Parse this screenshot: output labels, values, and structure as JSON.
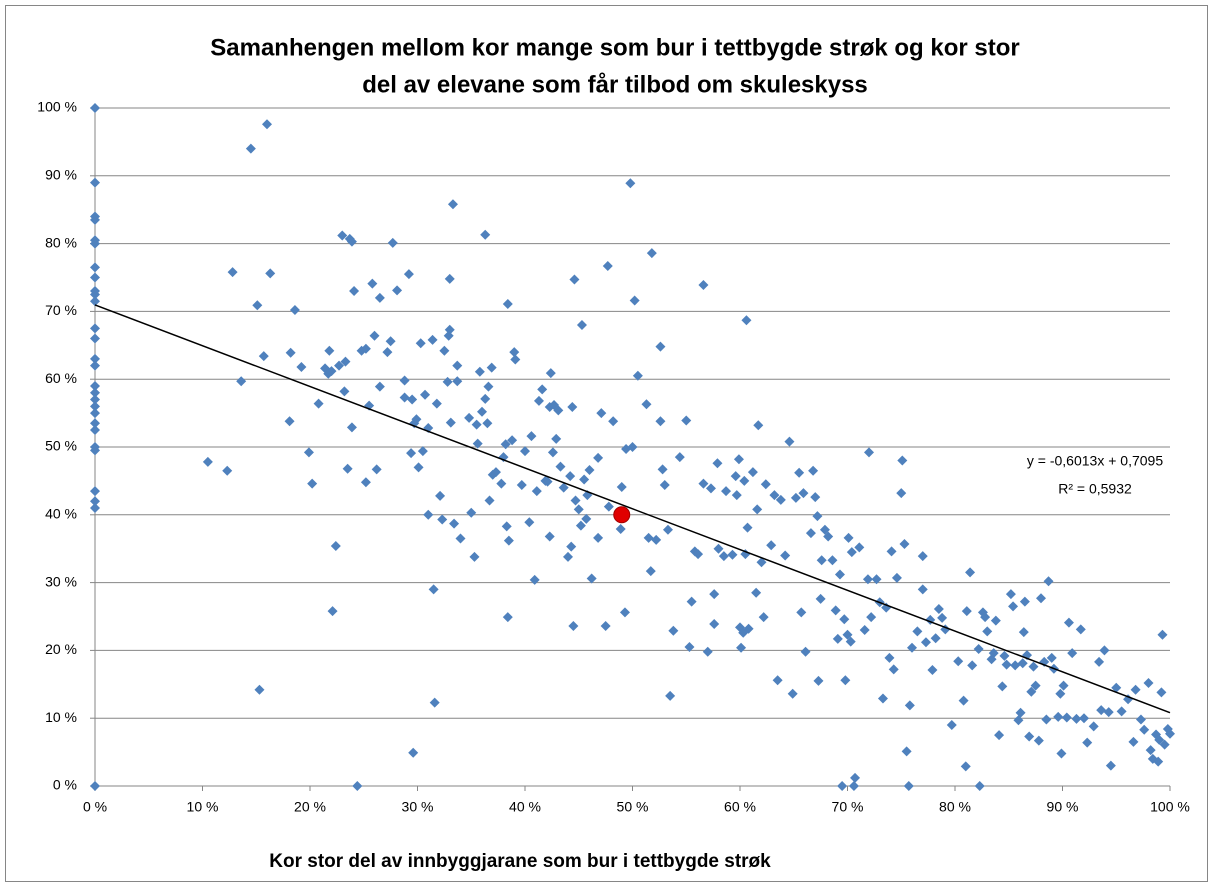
{
  "chart_data": {
    "type": "scatter",
    "title": [
      "Samanhengen mellom kor mange som bur i tettbygde strøk og kor stor",
      "del av elevane som får tilbod om skuleskyss"
    ],
    "x_label": "Kor stor del av innbyggjarane som bur i tettbygde strøk",
    "xlim": [
      0,
      1
    ],
    "ylim": [
      0,
      1
    ],
    "xticks": [
      {
        "value": 0,
        "label": "0 %"
      },
      {
        "value": 0.1,
        "label": "10 %"
      },
      {
        "value": 0.2,
        "label": "20 %"
      },
      {
        "value": 0.3,
        "label": "30 %"
      },
      {
        "value": 0.4,
        "label": "40 %"
      },
      {
        "value": 0.5,
        "label": "50 %"
      },
      {
        "value": 0.6,
        "label": "60 %"
      },
      {
        "value": 0.7,
        "label": "70 %"
      },
      {
        "value": 0.8,
        "label": "80 %"
      },
      {
        "value": 0.9,
        "label": "90 %"
      },
      {
        "value": 1,
        "label": "100 %"
      }
    ],
    "yticks": [
      {
        "value": 0,
        "label": "0 %"
      },
      {
        "value": 0.1,
        "label": "10 %"
      },
      {
        "value": 0.2,
        "label": "20 %"
      },
      {
        "value": 0.3,
        "label": "30 %"
      },
      {
        "value": 0.4,
        "label": "40 %"
      },
      {
        "value": 0.5,
        "label": "50 %"
      },
      {
        "value": 0.6,
        "label": "60 %"
      },
      {
        "value": 0.7,
        "label": "70 %"
      },
      {
        "value": 0.8,
        "label": "80 %"
      },
      {
        "value": 0.9,
        "label": "90 %"
      },
      {
        "value": 1,
        "label": "100 %"
      }
    ],
    "grid": true,
    "series": [
      {
        "color": "#4f81bd",
        "marker": "diamond",
        "x": [
          0,
          0,
          0,
          0,
          0,
          0,
          0,
          0,
          0,
          0,
          0,
          0,
          0,
          0,
          0,
          0,
          0,
          0,
          0,
          0,
          0,
          0,
          0,
          0,
          0,
          0,
          0,
          0,
          0.105,
          0.123,
          0.128,
          0.136,
          0.145,
          0.151,
          0.153,
          0.157,
          0.16,
          0.163,
          0.182,
          0.181,
          0.186,
          0.192,
          0.199,
          0.202,
          0.208,
          0.214,
          0.217,
          0.218,
          0.22,
          0.221,
          0.224,
          0.227,
          0.23,
          0.232,
          0.233,
          0.235,
          0.237,
          0.239,
          0.239,
          0.241,
          0.244,
          0.248,
          0.252,
          0.255,
          0.252,
          0.258,
          0.26,
          0.262,
          0.265,
          0.265,
          0.272,
          0.275,
          0.277,
          0.281,
          0.288,
          0.288,
          0.292,
          0.294,
          0.295,
          0.297,
          0.296,
          0.299,
          0.301,
          0.303,
          0.305,
          0.307,
          0.31,
          0.31,
          0.314,
          0.315,
          0.316,
          0.318,
          0.321,
          0.323,
          0.325,
          0.328,
          0.329,
          0.33,
          0.33,
          0.331,
          0.333,
          0.334,
          0.337,
          0.337,
          0.34,
          0.348,
          0.35,
          0.353,
          0.355,
          0.356,
          0.358,
          0.36,
          0.363,
          0.363,
          0.365,
          0.366,
          0.367,
          0.369,
          0.37,
          0.373,
          0.378,
          0.38,
          0.382,
          0.383,
          0.384,
          0.384,
          0.385,
          0.388,
          0.39,
          0.391,
          0.397,
          0.4,
          0.404,
          0.406,
          0.409,
          0.411,
          0.413,
          0.416,
          0.419,
          0.421,
          0.423,
          0.423,
          0.424,
          0.426,
          0.427,
          0.429,
          0.431,
          0.433,
          0.436,
          0.44,
          0.442,
          0.443,
          0.444,
          0.445,
          0.446,
          0.447,
          0.45,
          0.452,
          0.453,
          0.455,
          0.457,
          0.458,
          0.46,
          0.462,
          0.468,
          0.468,
          0.471,
          0.475,
          0.477,
          0.478,
          0.482,
          0.489,
          0.49,
          0.493,
          0.494,
          0.498,
          0.5,
          0.502,
          0.505,
          0.513,
          0.515,
          0.518,
          0.517,
          0.522,
          0.526,
          0.526,
          0.528,
          0.53,
          0.533,
          0.535,
          0.538,
          0.544,
          0.55,
          0.553,
          0.555,
          0.558,
          0.561,
          0.566,
          0.566,
          0.57,
          0.573,
          0.576,
          0.576,
          0.579,
          0.58,
          0.585,
          0.587,
          0.593,
          0.596,
          0.597,
          0.599,
          0.6,
          0.601,
          0.603,
          0.604,
          0.605,
          0.606,
          0.607,
          0.608,
          0.612,
          0.615,
          0.616,
          0.617,
          0.62,
          0.622,
          0.624,
          0.629,
          0.632,
          0.635,
          0.638,
          0.642,
          0.646,
          0.649,
          0.652,
          0.655,
          0.657,
          0.659,
          0.661,
          0.666,
          0.668,
          0.67,
          0.672,
          0.673,
          0.675,
          0.676,
          0.679,
          0.682,
          0.686,
          0.689,
          0.691,
          0.693,
          0.695,
          0.697,
          0.698,
          0.7,
          0.701,
          0.703,
          0.704,
          0.706,
          0.707,
          0.711,
          0.716,
          0.719,
          0.72,
          0.722,
          0.727,
          0.73,
          0.733,
          0.736,
          0.739,
          0.741,
          0.743,
          0.746,
          0.75,
          0.751,
          0.753,
          0.755,
          0.757,
          0.758,
          0.76,
          0.765,
          0.77,
          0.77,
          0.773,
          0.777,
          0.779,
          0.782,
          0.785,
          0.788,
          0.791,
          0.797,
          0.803,
          0.808,
          0.81,
          0.811,
          0.814,
          0.816,
          0.822,
          0.823,
          0.826,
          0.828,
          0.83,
          0.834,
          0.836,
          0.838,
          0.841,
          0.844,
          0.846,
          0.848,
          0.852,
          0.854,
          0.856,
          0.859,
          0.861,
          0.863,
          0.864,
          0.865,
          0.867,
          0.869,
          0.871,
          0.873,
          0.875,
          0.878,
          0.88,
          0.883,
          0.885,
          0.887,
          0.89,
          0.892,
          0.896,
          0.898,
          0.899,
          0.901,
          0.904,
          0.906,
          0.909,
          0.913,
          0.917,
          0.92,
          0.923,
          0.929,
          0.934,
          0.936,
          0.939,
          0.943,
          0.945,
          0.95,
          0.955,
          0.961,
          0.966,
          0.968,
          0.973,
          0.976,
          0.98,
          0.982,
          0.984,
          0.987,
          0.989,
          0.99,
          0.992,
          0.993,
          0.995,
          0.998,
          1
        ],
        "values": [
          1,
          0.89,
          0.84,
          0.835,
          0.805,
          0.8,
          0.765,
          0.75,
          0.73,
          0.725,
          0.715,
          0.675,
          0.66,
          0.63,
          0.62,
          0.59,
          0.58,
          0.57,
          0.56,
          0.55,
          0.535,
          0.525,
          0.5,
          0.495,
          0.435,
          0.42,
          0.41,
          0,
          0.478,
          0.465,
          0.758,
          0.597,
          0.94,
          0.709,
          0.142,
          0.634,
          0.976,
          0.756,
          0.639,
          0.538,
          0.702,
          0.618,
          0.492,
          0.446,
          0.564,
          0.616,
          0.608,
          0.642,
          0.612,
          0.258,
          0.354,
          0.62,
          0.812,
          0.582,
          0.626,
          0.468,
          0.807,
          0.803,
          0.529,
          0.73,
          0,
          0.642,
          0.645,
          0.561,
          0.448,
          0.741,
          0.664,
          0.467,
          0.589,
          0.72,
          0.64,
          0.656,
          0.801,
          0.731,
          0.573,
          0.598,
          0.755,
          0.491,
          0.57,
          0.535,
          0.049,
          0.541,
          0.47,
          0.653,
          0.494,
          0.577,
          0.528,
          0.4,
          0.658,
          0.29,
          0.123,
          0.564,
          0.428,
          0.393,
          0.642,
          0.596,
          0.664,
          0.673,
          0.748,
          0.536,
          0.858,
          0.387,
          0.597,
          0.62,
          0.365,
          0.543,
          0.403,
          0.338,
          0.533,
          0.505,
          0.611,
          0.552,
          0.813,
          0.571,
          0.535,
          0.589,
          0.421,
          0.617,
          0.459,
          0.463,
          0.446,
          0.485,
          0.504,
          0.383,
          0.711,
          0.249,
          0.362,
          0.51,
          0.64,
          0.629,
          0.444,
          0.494,
          0.389,
          0.516,
          0.304,
          0.435,
          0.568,
          0.585,
          0.45,
          0.449,
          0.559,
          0.368,
          0.609,
          0.492,
          0.562,
          0.512,
          0.554,
          0.471,
          0.44,
          0.338,
          0.457,
          0.353,
          0.559,
          0.236,
          0.747,
          0.421,
          0.408,
          0.384,
          0.68,
          0.452,
          0.394,
          0.429,
          0.466,
          0.306,
          0.484,
          0.366,
          0.55,
          0.236,
          0.767,
          0.412,
          0.538,
          0.379,
          0.441,
          0.256,
          0.497,
          0.889,
          0.5,
          0.716,
          0.605,
          0.563,
          0.366,
          0.786,
          0.317,
          0.363,
          0.538,
          0.648,
          0.467,
          0.444,
          0.378,
          0.133,
          0.229,
          0.485,
          0.539,
          0.205,
          0.272,
          0.346,
          0.342,
          0.739,
          0.446,
          0.198,
          0.439,
          0.283,
          0.239,
          0.476,
          0.35,
          0.339,
          0.435,
          0.341,
          0.457,
          0.429,
          0.482,
          0.234,
          0.204,
          0.226,
          0.45,
          0.342,
          0.687,
          0.381,
          0.232,
          0.463,
          0.285,
          0.408,
          0.532,
          0.33,
          0.249,
          0.445,
          0.355,
          0.429,
          0.156,
          0.422,
          0.34,
          0.508,
          0.136,
          0.425,
          0.462,
          0.256,
          0.432,
          0.198,
          0.373,
          0.465,
          0.426,
          0.398,
          0.155,
          0.276,
          0.333,
          0.378,
          0.368,
          0.333,
          0.259,
          0.217,
          0.312,
          0,
          0.246,
          0.156,
          0.223,
          0.366,
          0.213,
          0.345,
          0,
          0.012,
          0.352,
          0.23,
          0.305,
          0.492,
          0.249,
          0.305,
          0.271,
          0.129,
          0.263,
          0.189,
          0.346,
          0.172,
          0.307,
          0.432,
          0.48,
          0.357,
          0.051,
          0,
          0.119,
          0.204,
          0.228,
          0.29,
          0.339,
          0.212,
          0.245,
          0.171,
          0.218,
          0.261,
          0.248,
          0.231,
          0.09,
          0.184,
          0.126,
          0.029,
          0.258,
          0.315,
          0.178,
          0.202,
          0,
          0.256,
          0.249,
          0.228,
          0.187,
          0.196,
          0.244,
          0.075,
          0.147,
          0.192,
          0.179,
          0.283,
          0.265,
          0.178,
          0.097,
          0.108,
          0.181,
          0.227,
          0.272,
          0.193,
          0.073,
          0.139,
          0.176,
          0.148,
          0.067,
          0.277,
          0.183,
          0.098,
          0.302,
          0.189,
          0.173,
          0.102,
          0.136,
          0.048,
          0.148,
          0.101,
          0.241,
          0.196,
          0.099,
          0.231,
          0.1,
          0.064,
          0.088,
          0.183,
          0.112,
          0.2,
          0.109,
          0.03,
          0.145,
          0.11,
          0.128,
          0.065,
          0.142,
          0.098,
          0.083,
          0.152,
          0.053,
          0.04,
          0.076,
          0.036,
          0.068,
          0.138,
          0.223,
          0.061,
          0.084,
          0.077
        ]
      },
      {
        "color": "#e00000",
        "marker": "circle",
        "x": [
          0.49
        ],
        "values": [
          0.4
        ]
      }
    ],
    "trendline": {
      "color": "#000000",
      "slope": -0.6013,
      "intercept": 0.7095,
      "label": "y = -0,6013x + 0,7095",
      "r2_label": "R² = 0,5932"
    }
  }
}
